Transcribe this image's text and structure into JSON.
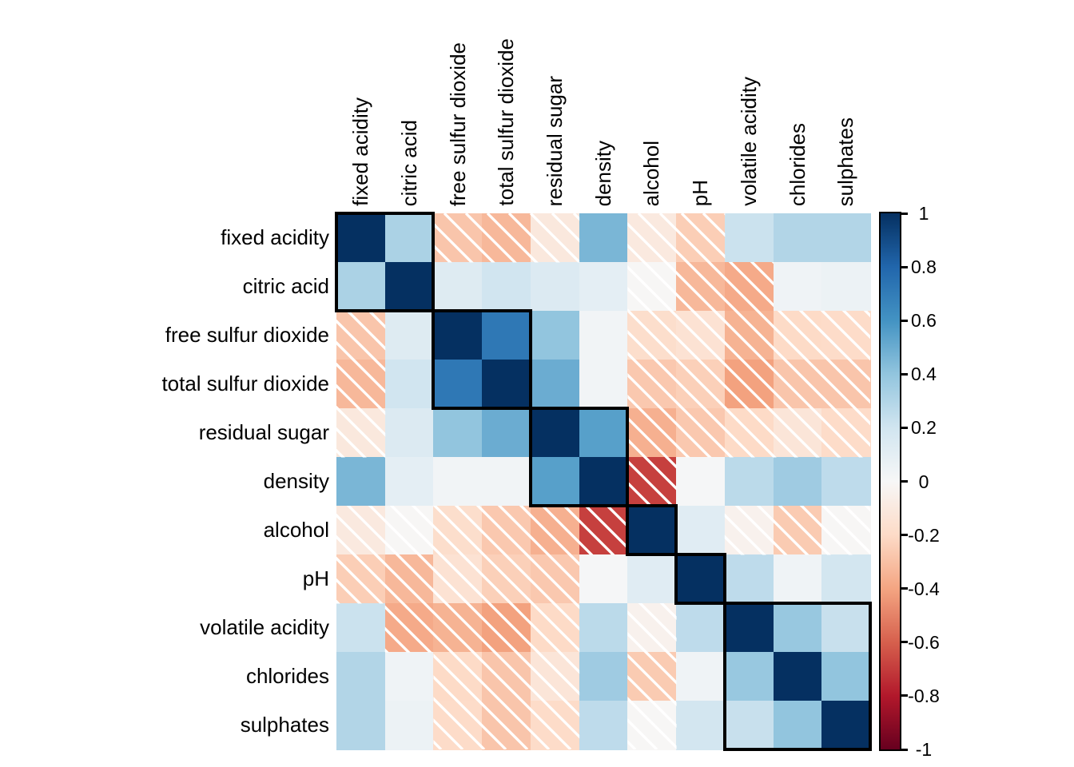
{
  "figure": {
    "title": "",
    "background": "#ffffff",
    "note_hatching": "white diagonal shading marks negative correlations",
    "note_rectangles": "black rectangles outline hierarchical clusters on the diagonal"
  },
  "chart_data": {
    "type": "heatmap",
    "variables": [
      "fixed acidity",
      "citric acid",
      "free sulfur dioxide",
      "total sulfur dioxide",
      "residual sugar",
      "density",
      "alcohol",
      "pH",
      "volatile acidity",
      "chlorides",
      "sulphates"
    ],
    "matrix": [
      [
        1.0,
        0.32,
        -0.28,
        -0.33,
        -0.11,
        0.46,
        -0.1,
        -0.25,
        0.22,
        0.3,
        0.3
      ],
      [
        0.32,
        1.0,
        0.13,
        0.2,
        0.14,
        0.1,
        -0.01,
        -0.33,
        -0.38,
        0.04,
        0.06
      ],
      [
        -0.28,
        0.13,
        1.0,
        0.72,
        0.4,
        0.03,
        -0.18,
        -0.15,
        -0.35,
        -0.2,
        -0.19
      ],
      [
        -0.33,
        0.2,
        0.72,
        1.0,
        0.5,
        0.03,
        -0.27,
        -0.24,
        -0.41,
        -0.28,
        -0.28
      ],
      [
        -0.11,
        0.14,
        0.4,
        0.5,
        1.0,
        0.55,
        -0.36,
        -0.27,
        -0.2,
        -0.13,
        -0.19
      ],
      [
        0.46,
        0.1,
        0.03,
        0.03,
        0.55,
        1.0,
        -0.69,
        0.01,
        0.27,
        0.36,
        0.26
      ],
      [
        -0.1,
        -0.01,
        -0.18,
        -0.27,
        -0.36,
        -0.69,
        1.0,
        0.12,
        -0.04,
        -0.26,
        -0.01
      ],
      [
        -0.25,
        -0.33,
        -0.15,
        -0.24,
        -0.27,
        0.01,
        0.12,
        1.0,
        0.26,
        0.04,
        0.19
      ],
      [
        0.22,
        -0.38,
        -0.35,
        -0.41,
        -0.2,
        0.27,
        -0.04,
        0.26,
        1.0,
        0.38,
        0.23
      ],
      [
        0.3,
        0.04,
        -0.2,
        -0.28,
        -0.13,
        0.36,
        -0.26,
        0.04,
        0.38,
        1.0,
        0.4
      ],
      [
        0.3,
        0.06,
        -0.19,
        -0.28,
        -0.19,
        0.26,
        -0.01,
        0.19,
        0.23,
        0.4,
        1.0
      ]
    ],
    "negative_hatching": true,
    "cluster_rects": [
      {
        "start": 0,
        "size": 2
      },
      {
        "start": 2,
        "size": 2
      },
      {
        "start": 4,
        "size": 2
      },
      {
        "start": 6,
        "size": 1
      },
      {
        "start": 7,
        "size": 1
      },
      {
        "start": 8,
        "size": 3
      }
    ],
    "colorbar": {
      "range": [
        -1,
        1
      ],
      "tick_labels": [
        "1",
        "0.8",
        "0.6",
        "0.4",
        "0.2",
        "0",
        "-0.2",
        "-0.4",
        "-0.6",
        "-0.8",
        "-1"
      ],
      "tick_values": [
        1,
        0.8,
        0.6,
        0.4,
        0.2,
        0,
        -0.2,
        -0.4,
        -0.6,
        -0.8,
        -1
      ],
      "palette_name": "RdBu",
      "anchors_low_to_high": [
        "#67001F",
        "#B2182B",
        "#D6604D",
        "#F4A582",
        "#FDDBC7",
        "#F7F7F7",
        "#D1E5F0",
        "#92C5DE",
        "#4393C3",
        "#2166AC",
        "#053061"
      ]
    },
    "colors": {
      "cluster_rect_border": "#000000",
      "hatch_line": "#ffffff",
      "label_text": "#000000",
      "colorbar_border": "#000000"
    },
    "legend_position": "right"
  }
}
